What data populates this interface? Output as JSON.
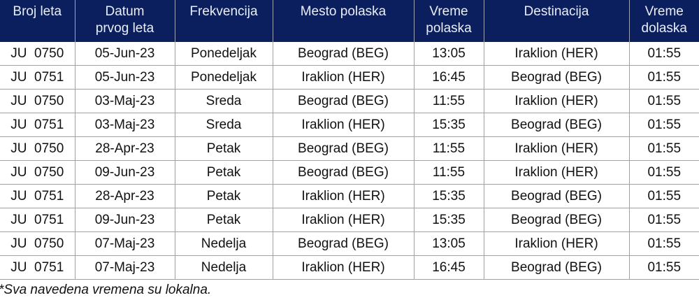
{
  "headers": [
    "Broj leta",
    "Datum\nprvog leta",
    "Frekvencija",
    "Mesto polaska",
    "Vreme\npolaska",
    "Destinacija",
    "Vreme\ndolaska"
  ],
  "rows": [
    [
      "JU  0750",
      "05-Jun-23",
      "Ponedeljak",
      "Beograd (BEG)",
      "13:05",
      "Iraklion (HER)",
      "01:55"
    ],
    [
      "JU  0751",
      "05-Jun-23",
      "Ponedeljak",
      "Iraklion (HER)",
      "16:45",
      "Beograd (BEG)",
      "01:55"
    ],
    [
      "JU  0750",
      "03-Maj-23",
      "Sreda",
      "Beograd (BEG)",
      "11:55",
      "Iraklion (HER)",
      "01:55"
    ],
    [
      "JU  0751",
      "03-Maj-23",
      "Sreda",
      "Iraklion (HER)",
      "15:35",
      "Beograd (BEG)",
      "01:55"
    ],
    [
      "JU  0750",
      "28-Apr-23",
      "Petak",
      "Beograd (BEG)",
      "11:55",
      "Iraklion (HER)",
      "01:55"
    ],
    [
      "JU  0750",
      "09-Jun-23",
      "Petak",
      "Beograd (BEG)",
      "11:55",
      "Iraklion (HER)",
      "01:55"
    ],
    [
      "JU  0751",
      "28-Apr-23",
      "Petak",
      "Iraklion (HER)",
      "15:35",
      "Beograd (BEG)",
      "01:55"
    ],
    [
      "JU  0751",
      "09-Jun-23",
      "Petak",
      "Iraklion (HER)",
      "15:35",
      "Beograd (BEG)",
      "01:55"
    ],
    [
      "JU  0750",
      "07-Maj-23",
      "Nedelja",
      "Beograd (BEG)",
      "13:05",
      "Iraklion (HER)",
      "01:55"
    ],
    [
      "JU  0751",
      "07-Maj-23",
      "Nedelja",
      "Iraklion (HER)",
      "16:45",
      "Beograd (BEG)",
      "01:55"
    ]
  ],
  "footnote": "*Sva navedena vremena su lokalna.",
  "colors": {
    "header_bg": "#0b1f5e",
    "header_text": "#e8eef8"
  }
}
